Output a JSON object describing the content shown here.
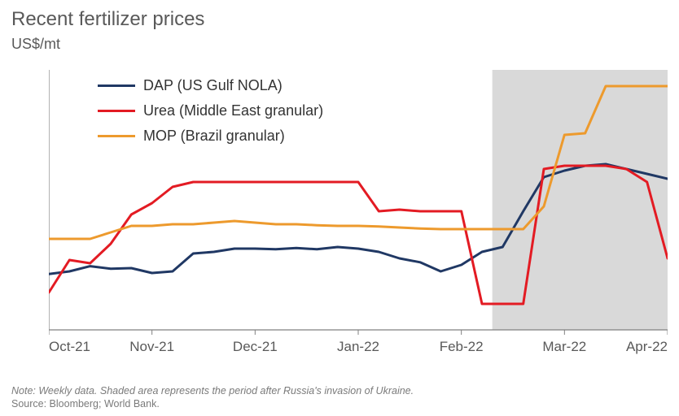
{
  "chart": {
    "type": "line",
    "title": "Recent fertilizer prices",
    "ylabel": "US$/mt",
    "title_fontsize": 24,
    "ylabel_fontsize": 18,
    "title_color": "#595959",
    "label_color": "#595959",
    "background_color": "#ffffff",
    "axis_color": "#808080",
    "tick_fontsize": 17,
    "tick_color": "#595959",
    "shaded_region": {
      "x_start": 21.5,
      "x_end": 30,
      "color": "#d9d9d9"
    },
    "ylim": [
      500,
      1300
    ],
    "yticks": [
      500,
      700,
      900,
      1100,
      1300
    ],
    "xlim": [
      0,
      30
    ],
    "xticks": [
      {
        "pos": 0,
        "label": "Oct-21"
      },
      {
        "pos": 5,
        "label": "Nov-21"
      },
      {
        "pos": 10,
        "label": "Dec-21"
      },
      {
        "pos": 15,
        "label": "Jan-22"
      },
      {
        "pos": 20,
        "label": "Feb-22"
      },
      {
        "pos": 25,
        "label": "Mar-22"
      },
      {
        "pos": 30,
        "label": "Apr-22"
      }
    ],
    "line_width": 3,
    "series": [
      {
        "name": "DAP (US Gulf NOLA)",
        "color": "#203864",
        "x": [
          0,
          1,
          2,
          3,
          4,
          5,
          6,
          7,
          8,
          9,
          10,
          11,
          12,
          13,
          14,
          15,
          16,
          17,
          18,
          19,
          20,
          21,
          22,
          23,
          24,
          25,
          26,
          27,
          28,
          29,
          30
        ],
        "y": [
          672,
          680,
          696,
          688,
          690,
          675,
          680,
          735,
          740,
          750,
          750,
          748,
          752,
          748,
          755,
          750,
          740,
          720,
          708,
          680,
          700,
          740,
          755,
          865,
          970,
          990,
          1005,
          1010,
          995,
          980,
          965
        ]
      },
      {
        "name": "Urea (Middle East granular)",
        "color": "#e31b23",
        "x": [
          0,
          1,
          2,
          3,
          4,
          5,
          6,
          7,
          8,
          9,
          10,
          11,
          12,
          13,
          14,
          15,
          16,
          17,
          18,
          19,
          20,
          21,
          22,
          23,
          24,
          25,
          26,
          27,
          28,
          29,
          30
        ],
        "y": [
          615,
          715,
          705,
          765,
          855,
          890,
          940,
          955,
          955,
          955,
          955,
          955,
          955,
          955,
          955,
          955,
          865,
          870,
          865,
          865,
          865,
          580,
          580,
          580,
          995,
          1005,
          1005,
          1005,
          995,
          955,
          720
        ]
      },
      {
        "name": "MOP (Brazil granular)",
        "color": "#ed9a2d",
        "x": [
          0,
          1,
          2,
          3,
          4,
          5,
          6,
          7,
          8,
          9,
          10,
          11,
          12,
          13,
          14,
          15,
          16,
          17,
          18,
          19,
          20,
          21,
          22,
          23,
          24,
          25,
          26,
          27,
          28,
          29,
          30
        ],
        "y": [
          780,
          780,
          780,
          800,
          820,
          820,
          825,
          825,
          830,
          835,
          830,
          825,
          825,
          822,
          820,
          820,
          818,
          815,
          812,
          810,
          810,
          810,
          810,
          810,
          880,
          1100,
          1105,
          1250,
          1250,
          1250,
          1250
        ]
      }
    ],
    "note": "Note: Weekly data. Shaded area represents the period after Russia's invasion of Ukraine.",
    "source": "Source: Bloomberg; World Bank."
  }
}
